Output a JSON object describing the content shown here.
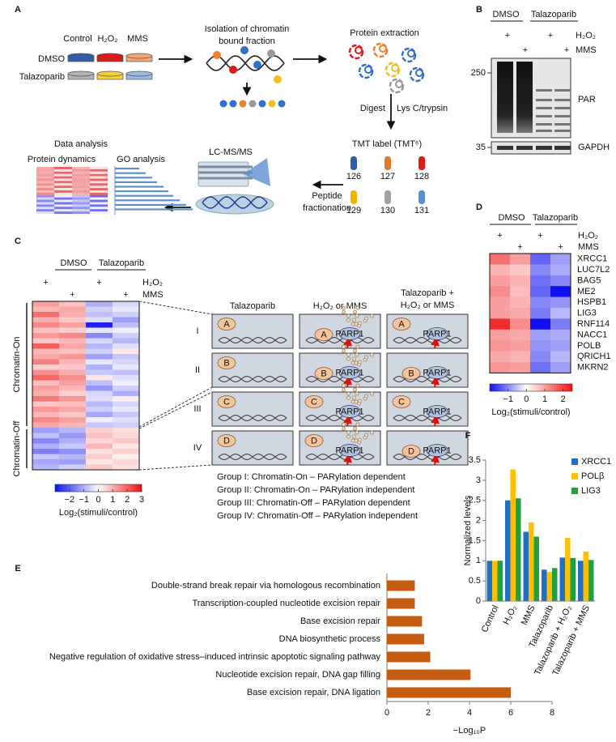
{
  "figure": {
    "A": {
      "label": "A",
      "control": "Control",
      "h2o2": "H₂O₂",
      "mms": "MMS",
      "dmso": "DMSO",
      "talazoparib": "Talazoparib",
      "isolation": [
        "Isolation of chromatin",
        "bound fraction"
      ],
      "extraction": "Protein extraction",
      "digest": "Digest",
      "enzyme": "Lys C/trypsin",
      "tmt": "TMT label (TMT⁶)",
      "tmt_channels": [
        "126",
        "127",
        "128",
        "129",
        "130",
        "131"
      ],
      "fractionation": [
        "Peptide",
        "fractionation"
      ],
      "lcms": "LC-MS/MS",
      "data_analysis": "Data analysis",
      "protein_dynamics": "Protein dynamics",
      "go_analysis": "GO analysis"
    },
    "B": {
      "label": "B",
      "conditions": [
        "DMSO",
        "Talazoparib"
      ],
      "treatment_marks": [
        "+",
        "+",
        "+",
        "+"
      ],
      "treatments": [
        "H₂O₂",
        "MMS"
      ],
      "markers": [
        "250",
        "35"
      ],
      "blots": [
        "PAR",
        "GAPDH"
      ]
    },
    "C": {
      "label": "C",
      "columns": [
        "Talazoparib",
        "H₂O₂ or MMS",
        "Talazoparib +",
        "H₂O₂ or MMS"
      ],
      "groups": [
        "I",
        "II",
        "III",
        "IV"
      ],
      "proteins": [
        "A",
        "B",
        "C",
        "D"
      ],
      "parp1": "PARP1",
      "descriptions": [
        "Group I: Chromatin-On – PARylation dependent",
        "Group II: Chromatin-On – PARylation independent",
        "Group III: Chromatin-Off – PARylation dependent",
        "Group IV: Chromatin-Off – PARylation independent"
      ]
    }
  },
  "chart_data": [
    {
      "type": "heatmap",
      "conditions": [
        "DMSO",
        "Talazoparib"
      ],
      "treatment_marks": [
        "+",
        "+",
        "+",
        "+"
      ],
      "treatments": [
        "H₂O₂",
        "MMS"
      ],
      "groups": [
        {
          "name": "Chromatin-On",
          "values": [
            [
              1.2,
              0.8,
              -1.0,
              -0.5
            ],
            [
              0.9,
              1.1,
              -0.6,
              -0.3
            ],
            [
              1.8,
              1.0,
              -0.8,
              -0.6
            ],
            [
              1.0,
              0.7,
              -0.4,
              -1.2
            ],
            [
              1.5,
              1.2,
              -2.8,
              -0.8
            ],
            [
              0.8,
              0.6,
              -0.3,
              -0.2
            ],
            [
              1.3,
              1.5,
              -1.5,
              -0.6
            ],
            [
              0.7,
              0.9,
              -0.5,
              -0.9
            ],
            [
              2.0,
              1.1,
              -0.9,
              -0.4
            ],
            [
              0.9,
              0.8,
              -0.6,
              0.3
            ],
            [
              1.1,
              1.3,
              -1.2,
              -0.7
            ],
            [
              1.6,
              0.9,
              -0.3,
              -0.5
            ],
            [
              0.6,
              0.7,
              -1.0,
              -0.3
            ],
            [
              1.4,
              1.0,
              -0.7,
              -0.8
            ],
            [
              1.9,
              1.4,
              0.3,
              -0.4
            ],
            [
              0.8,
              1.2,
              -0.8,
              -0.2
            ],
            [
              1.2,
              0.9,
              -1.3,
              -0.6
            ],
            [
              1.0,
              0.6,
              -0.5,
              -1.0
            ],
            [
              1.7,
              1.3,
              -0.4,
              0.2
            ],
            [
              0.7,
              0.8,
              -0.9,
              -0.5
            ],
            [
              1.3,
              1.1,
              -0.6,
              -0.3
            ],
            [
              0.9,
              0.7,
              -1.1,
              -0.7
            ],
            [
              1.5,
              1.2,
              -0.2,
              -0.4
            ],
            [
              1.1,
              0.9,
              -0.7,
              -0.6
            ]
          ]
        },
        {
          "name": "Chromatin-Off",
          "values": [
            [
              -1.2,
              -0.9,
              0.6,
              0.4
            ],
            [
              -0.8,
              -1.3,
              0.8,
              0.5
            ],
            [
              -1.5,
              -1.0,
              0.5,
              0.7
            ],
            [
              -1.0,
              -0.7,
              0.9,
              0.3
            ],
            [
              -1.6,
              -1.4,
              0.4,
              0.6
            ],
            [
              -0.7,
              -0.9,
              0.6,
              0.2
            ],
            [
              -1.1,
              -1.2,
              0.3,
              0.5
            ],
            [
              -0.9,
              -0.6,
              0.7,
              0.4
            ]
          ]
        }
      ],
      "colors": [
        "#1010f0",
        "#ffffff",
        "#f01010"
      ],
      "clim": [
        -3,
        3
      ],
      "cticks": [
        {
          "value": -2,
          "label": "−2"
        },
        {
          "value": -1,
          "label": "−1"
        },
        0,
        1,
        2,
        3
      ],
      "colorbar_label": "Log₂(stimuli/control)"
    },
    {
      "type": "heatmap",
      "panel": "D",
      "conditions": [
        "DMSO",
        "Talazoparib"
      ],
      "treatment_marks": [
        "+",
        "+",
        "+",
        "+"
      ],
      "treatments": [
        "H₂O₂",
        "MMS"
      ],
      "rows": [
        "XRCC1",
        "LUC7L2",
        "BAG5",
        "ME2",
        "HSPB1",
        "LIG3",
        "RNF114",
        "NACC1",
        "POLB",
        "QRICH1",
        "MKRN2"
      ],
      "values": [
        [
          1.5,
          1.0,
          -1.3,
          -0.8
        ],
        [
          0.8,
          0.6,
          -1.0,
          -0.7
        ],
        [
          1.0,
          0.8,
          -1.2,
          -1.0
        ],
        [
          1.2,
          0.7,
          -1.3,
          -2.0
        ],
        [
          1.0,
          0.8,
          -1.0,
          -0.9
        ],
        [
          1.0,
          0.9,
          -1.1,
          -0.6
        ],
        [
          2.2,
          1.2,
          -2.2,
          -1.1
        ],
        [
          1.0,
          0.9,
          -0.8,
          -0.7
        ],
        [
          1.1,
          1.0,
          -0.9,
          -0.8
        ],
        [
          0.9,
          0.8,
          -1.0,
          -0.6
        ],
        [
          1.1,
          1.0,
          -1.2,
          -0.8
        ]
      ],
      "colors": [
        "#1010f0",
        "#ffffff",
        "#f01010"
      ],
      "clim": [
        -2,
        2.5
      ],
      "cticks": [
        {
          "value": -1,
          "label": "−1"
        },
        0,
        1,
        2
      ],
      "colorbar_label": "Log₂(stimuli/control)"
    },
    {
      "type": "hbar",
      "panel": "E",
      "categories": [
        "Double-strand break repair via homologous recombination",
        "Transcription-coupled nucleotide excision repair",
        "Base excision repair",
        "DNA biosynthetic process",
        "Negative regulation of oxidative stress–induced intrinsic apoptotic signaling pathway",
        "Nucleotide excision repair, DNA gap filling",
        "Base excision repair, DNA ligation"
      ],
      "values": [
        1.35,
        1.35,
        1.7,
        1.8,
        2.1,
        4.05,
        6.0
      ],
      "color": "#c55a11",
      "xlim": [
        0,
        8
      ],
      "xticks": [
        0,
        2,
        4,
        6,
        8
      ],
      "xlabel": "−Log₁₀P"
    },
    {
      "type": "bar",
      "panel": "F",
      "categories": [
        "Control",
        "H₂O₂",
        "MMS",
        "Talazoparib",
        "Talazoparib + H₂O₂",
        "Talazoparib + MMS"
      ],
      "series": [
        {
          "name": "XRCC1",
          "color": "#1f6fc5",
          "values": [
            1,
            2.5,
            1.72,
            0.78,
            1.08,
            1.0
          ]
        },
        {
          "name": "POLβ",
          "color": "#ffc000",
          "values": [
            1,
            3.27,
            1.95,
            0.72,
            1.57,
            1.23
          ]
        },
        {
          "name": "LIG3",
          "color": "#20a040",
          "values": [
            1,
            2.55,
            1.6,
            0.82,
            1.07,
            1.02
          ]
        }
      ],
      "ylim": [
        0,
        3.5
      ],
      "yticks": [
        0,
        0.5,
        1,
        1.5,
        2,
        2.5,
        3,
        3.5
      ],
      "ylabel": "Normalized levels",
      "legend": "upper right"
    }
  ]
}
